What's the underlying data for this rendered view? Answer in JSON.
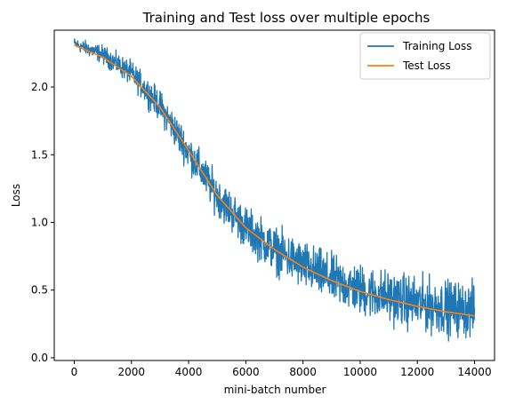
{
  "chart_data": {
    "type": "line",
    "title": "Training and Test loss over multiple epochs",
    "xlabel": "mini-batch number",
    "ylabel": "Loss",
    "xlim": [
      -700,
      14700
    ],
    "ylim": [
      -0.02,
      2.42
    ],
    "xticks": [
      0,
      2000,
      4000,
      6000,
      8000,
      10000,
      12000,
      14000
    ],
    "xtick_labels": [
      "0",
      "2000",
      "4000",
      "6000",
      "8000",
      "10000",
      "12000",
      "14000"
    ],
    "yticks": [
      0.0,
      0.5,
      1.0,
      1.5,
      2.0
    ],
    "ytick_labels": [
      "0.0",
      "0.5",
      "1.0",
      "1.5",
      "2.0"
    ],
    "grid": false,
    "legend_position": "top-right",
    "series": [
      {
        "name": "Training Loss",
        "color": "#1f77b4",
        "style": "noisy",
        "x": [
          0,
          1000,
          2000,
          3000,
          4000,
          5000,
          6000,
          7000,
          8000,
          9000,
          10000,
          11000,
          12000,
          13000,
          14000
        ],
        "y_mean": [
          2.32,
          2.24,
          2.1,
          1.86,
          1.52,
          1.2,
          0.96,
          0.8,
          0.68,
          0.58,
          0.5,
          0.45,
          0.4,
          0.37,
          0.35
        ],
        "y_band": [
          0.04,
          0.06,
          0.08,
          0.1,
          0.12,
          0.13,
          0.14,
          0.15,
          0.16,
          0.16,
          0.17,
          0.17,
          0.18,
          0.18,
          0.18
        ]
      },
      {
        "name": "Test Loss",
        "color": "#ff7f0e",
        "style": "smooth",
        "x": [
          0,
          1000,
          2000,
          3000,
          4000,
          5000,
          6000,
          7000,
          8000,
          9000,
          10000,
          11000,
          12000,
          13000,
          14000
        ],
        "y": [
          2.31,
          2.22,
          2.08,
          1.85,
          1.53,
          1.2,
          0.96,
          0.8,
          0.67,
          0.57,
          0.49,
          0.43,
          0.38,
          0.34,
          0.31
        ]
      }
    ]
  }
}
